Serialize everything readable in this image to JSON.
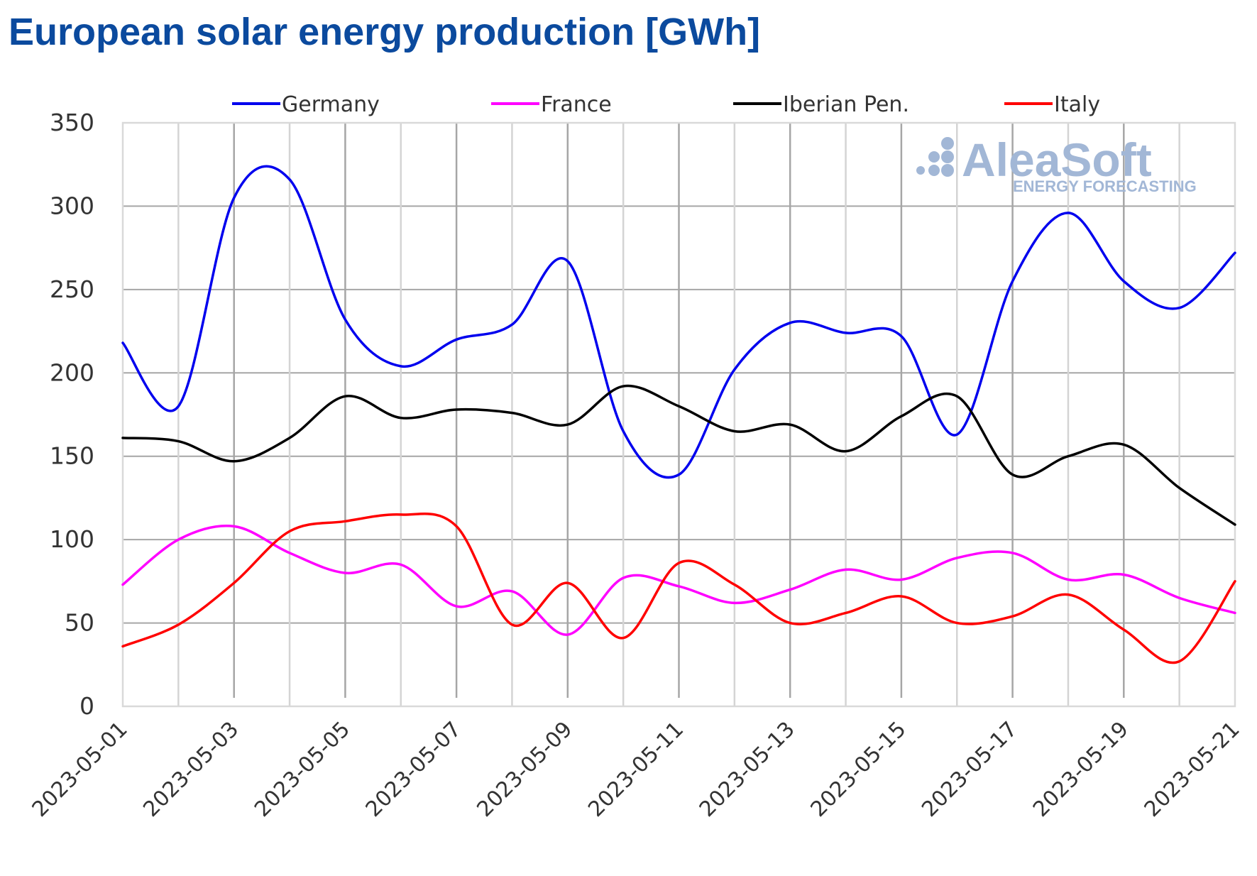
{
  "page": {
    "title": "European solar energy production [GWh]",
    "title_color": "#0b4a9e"
  },
  "watermark": {
    "brand": "AleaSoft",
    "tagline": "ENERGY FORECASTING",
    "icon": "dots-logo-icon",
    "color": "#a2b7d6"
  },
  "chart_data": {
    "type": "line",
    "title": "European solar energy production [GWh]",
    "xlabel": "",
    "ylabel": "",
    "ylim": [
      0,
      350
    ],
    "yticks": [
      0,
      50,
      100,
      150,
      200,
      250,
      300,
      350
    ],
    "ytick_labels": [
      "0",
      "50",
      "100",
      "150",
      "200",
      "250",
      "300",
      "350"
    ],
    "grid": true,
    "legend_position": "top",
    "x": [
      "2023-05-01",
      "2023-05-02",
      "2023-05-03",
      "2023-05-04",
      "2023-05-05",
      "2023-05-06",
      "2023-05-07",
      "2023-05-08",
      "2023-05-09",
      "2023-05-10",
      "2023-05-11",
      "2023-05-12",
      "2023-05-13",
      "2023-05-14",
      "2023-05-15",
      "2023-05-16",
      "2023-05-17",
      "2023-05-18",
      "2023-05-19",
      "2023-05-20",
      "2023-05-21"
    ],
    "xtick_labels": [
      "2023-05-01",
      "2023-05-03",
      "2023-05-05",
      "2023-05-07",
      "2023-05-09",
      "2023-05-11",
      "2023-05-13",
      "2023-05-15",
      "2023-05-17",
      "2023-05-19",
      "2023-05-21"
    ],
    "series": [
      {
        "name": "Germany",
        "color": "#0000ee",
        "values": [
          218,
          180,
          305,
          316,
          232,
          204,
          220,
          229,
          267,
          165,
          139,
          202,
          230,
          224,
          222,
          163,
          255,
          296,
          255,
          239,
          272
        ]
      },
      {
        "name": "France",
        "color": "#ff00ff",
        "values": [
          73,
          100,
          108,
          92,
          80,
          85,
          60,
          69,
          43,
          77,
          72,
          62,
          70,
          82,
          76,
          89,
          92,
          76,
          79,
          65,
          56
        ]
      },
      {
        "name": "Iberian Pen.",
        "color": "#000000",
        "values": [
          161,
          159,
          147,
          161,
          186,
          173,
          178,
          176,
          169,
          192,
          180,
          165,
          169,
          153,
          174,
          186,
          139,
          150,
          157,
          131,
          109
        ]
      },
      {
        "name": "Italy",
        "color": "#ff0000",
        "values": [
          36,
          49,
          74,
          105,
          111,
          115,
          108,
          49,
          74,
          41,
          86,
          73,
          50,
          56,
          66,
          50,
          54,
          67,
          46,
          27,
          75
        ]
      }
    ]
  }
}
